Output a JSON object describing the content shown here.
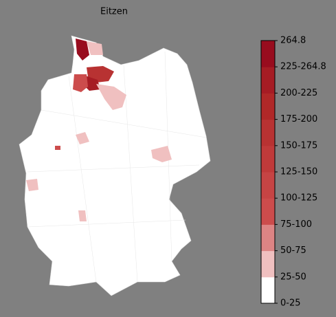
{
  "title": "Eitzen",
  "colorbar": {
    "labels": [
      "0-25",
      "25-50",
      "50-75",
      "75-100",
      "100-125",
      "125-150",
      "150-175",
      "175-200",
      "200-225",
      "225-264.8",
      "264.8"
    ],
    "colors": [
      "#ffffff",
      "#f0c0c0",
      "#dd8484",
      "#cc4c4c",
      "#c64444",
      "#c03a3a",
      "#b83232",
      "#b02828",
      "#a61c24",
      "#980c1e"
    ]
  }
}
